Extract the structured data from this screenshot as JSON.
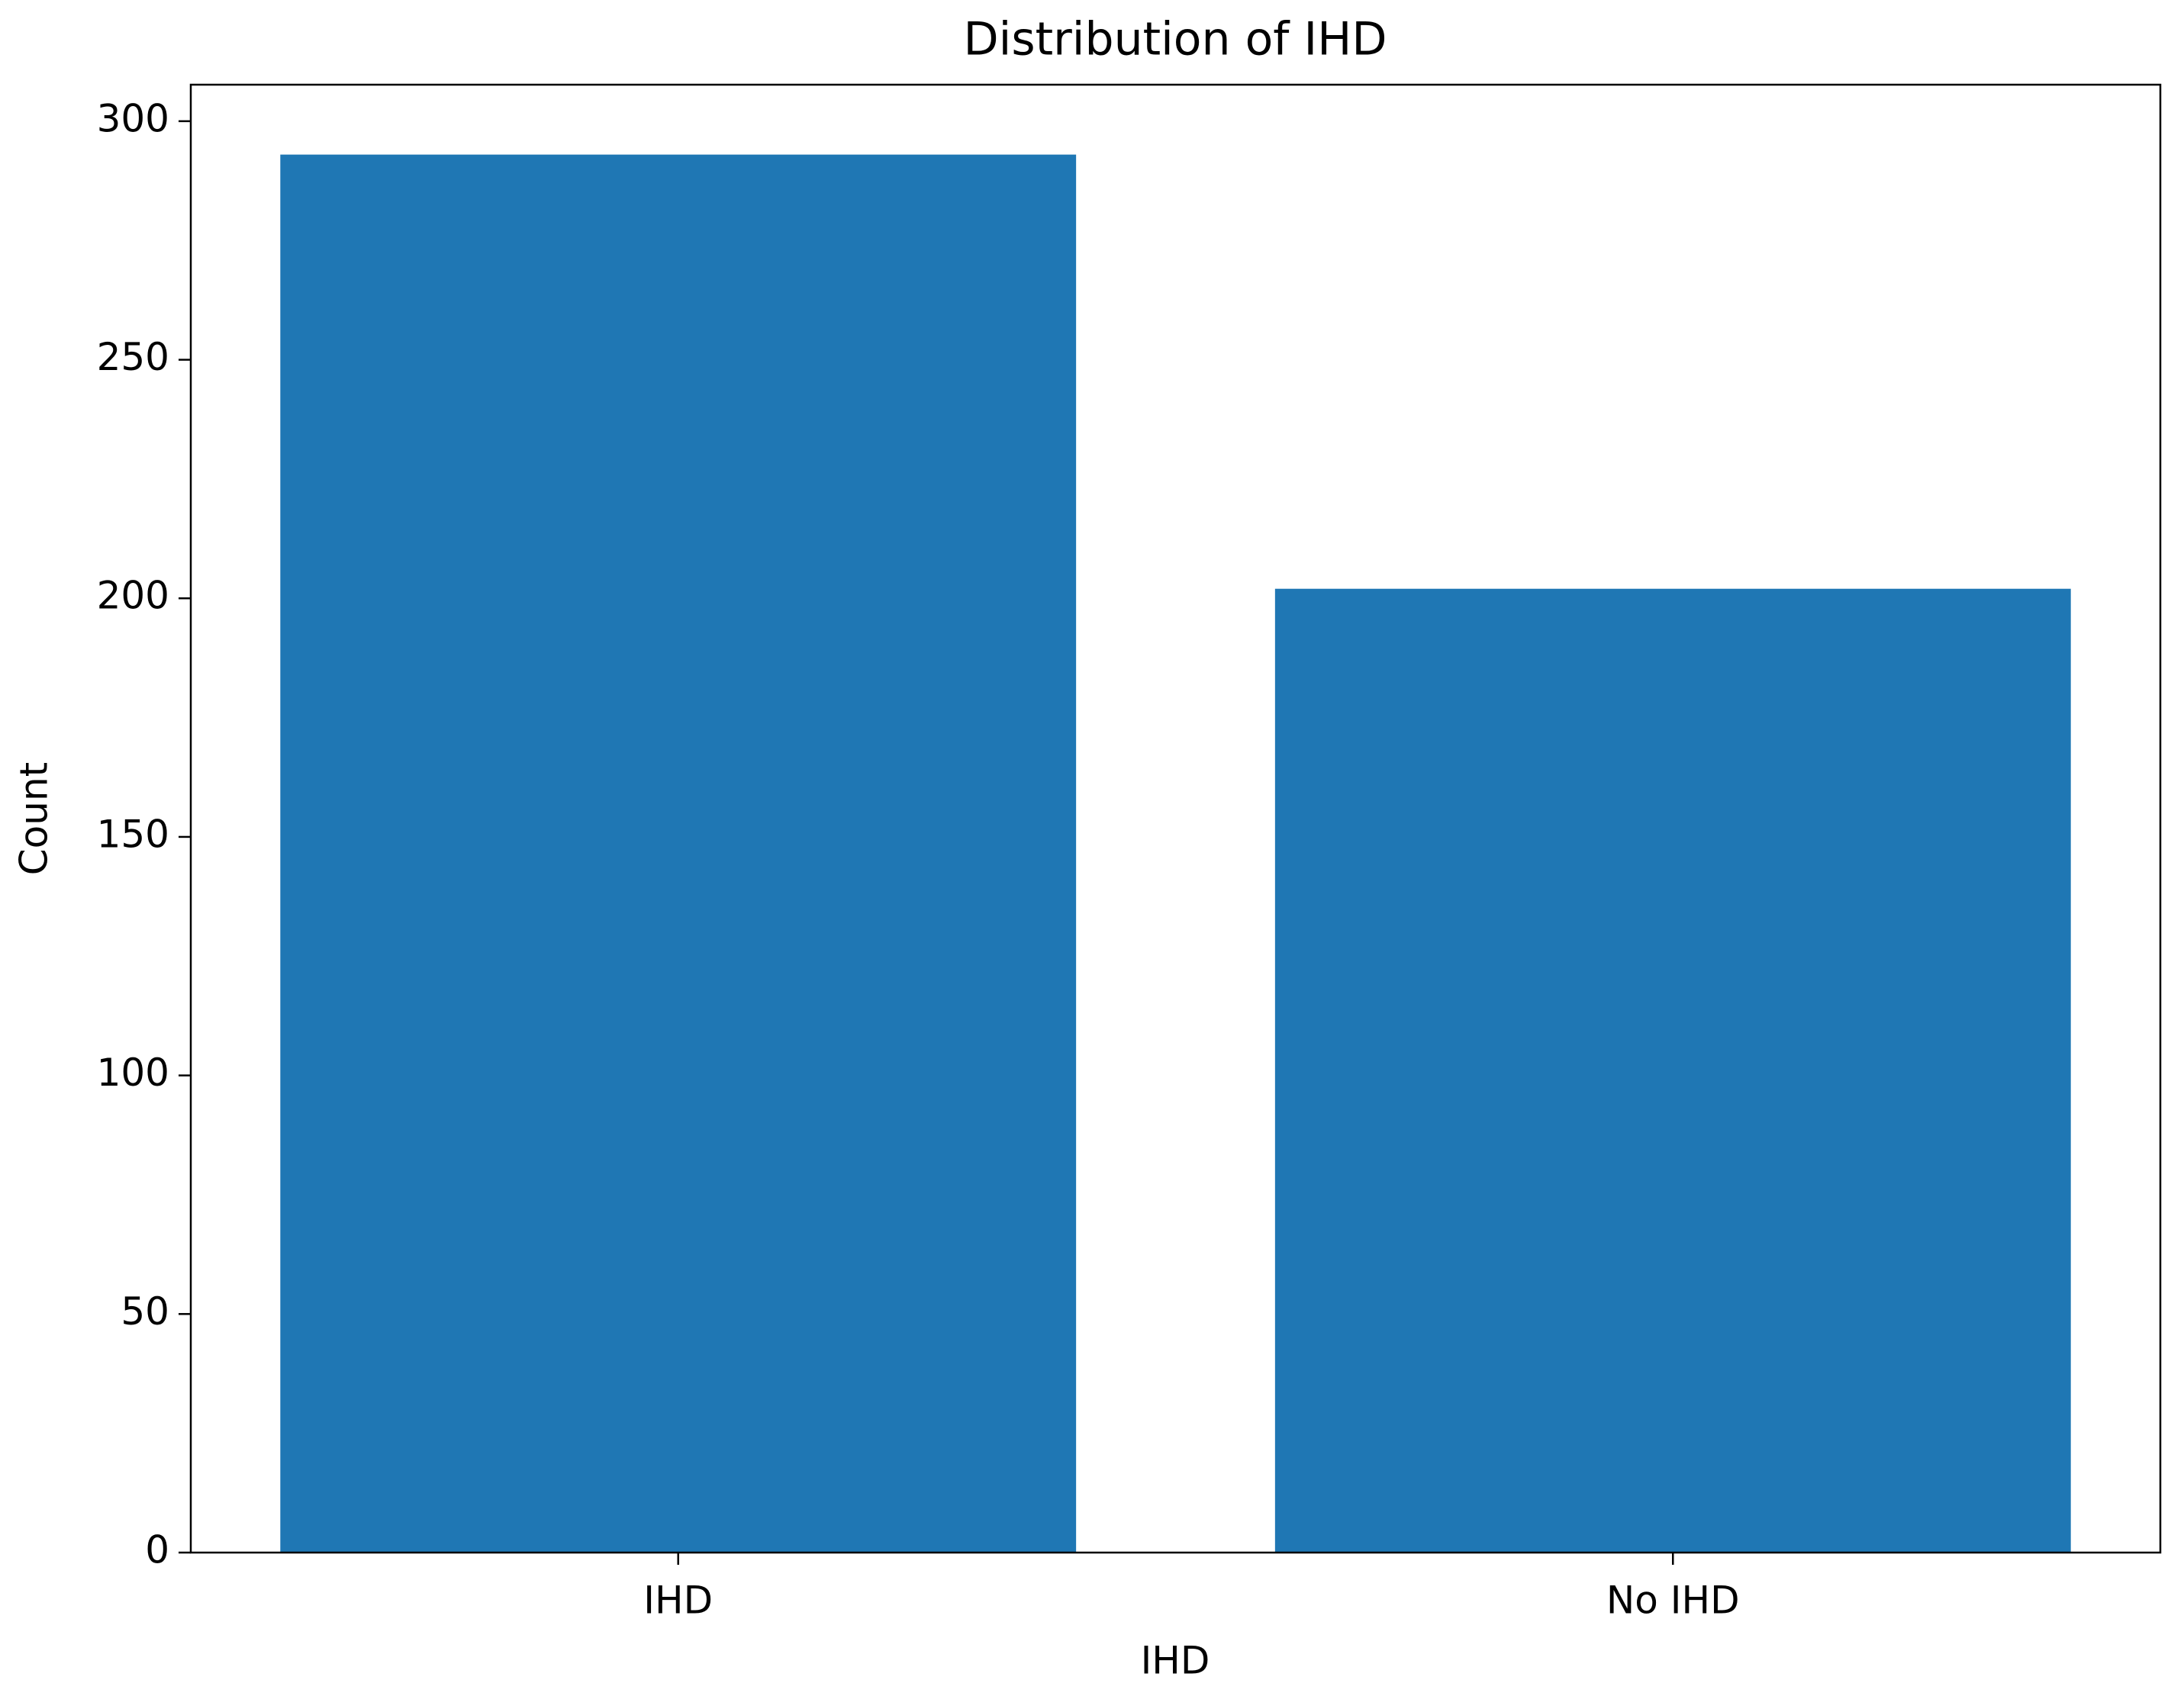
{
  "chart_data": {
    "type": "bar",
    "title": "Distribution of IHD",
    "x_label": "IHD",
    "y_label": "Count",
    "categories": [
      "IHD",
      "No IHD"
    ],
    "values": [
      293,
      202
    ],
    "color": "#1f77b4",
    "ylim": [
      0,
      307.65
    ],
    "yticks": [
      0,
      50,
      100,
      150,
      200,
      250,
      300
    ]
  }
}
